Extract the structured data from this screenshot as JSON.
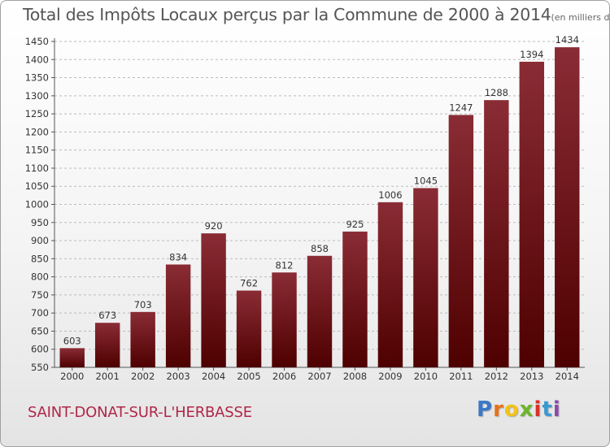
{
  "header": {
    "title": "Total des Impôts Locaux perçus par la Commune de 2000 à 2014",
    "unit": "(en milliers d'€)"
  },
  "footer": {
    "commune": "SAINT-DONAT-SUR-L'HERBASSE",
    "logo_letters": [
      "P",
      "r",
      "o",
      "x",
      "i",
      "t",
      "i"
    ]
  },
  "colors": {
    "bar_top": "#8a2c35",
    "bar_bottom": "#4e0000",
    "grid": "#bbbbbb",
    "commune_text": "#b0264a"
  },
  "chart_data": {
    "type": "bar",
    "title": "Total des Impôts Locaux perçus par la Commune de 2000 à 2014",
    "xlabel": "",
    "ylabel": "",
    "categories": [
      "2000",
      "2001",
      "2002",
      "2003",
      "2004",
      "2005",
      "2006",
      "2007",
      "2008",
      "2009",
      "2010",
      "2011",
      "2012",
      "2013",
      "2014"
    ],
    "values": [
      603,
      673,
      703,
      834,
      920,
      762,
      812,
      858,
      925,
      1006,
      1045,
      1247,
      1288,
      1394,
      1434
    ],
    "ylim": [
      550,
      1450
    ],
    "yticks": [
      550,
      600,
      650,
      700,
      750,
      800,
      850,
      900,
      950,
      1000,
      1050,
      1100,
      1150,
      1200,
      1250,
      1300,
      1350,
      1400,
      1450
    ],
    "grid": true,
    "data_labels": true
  }
}
